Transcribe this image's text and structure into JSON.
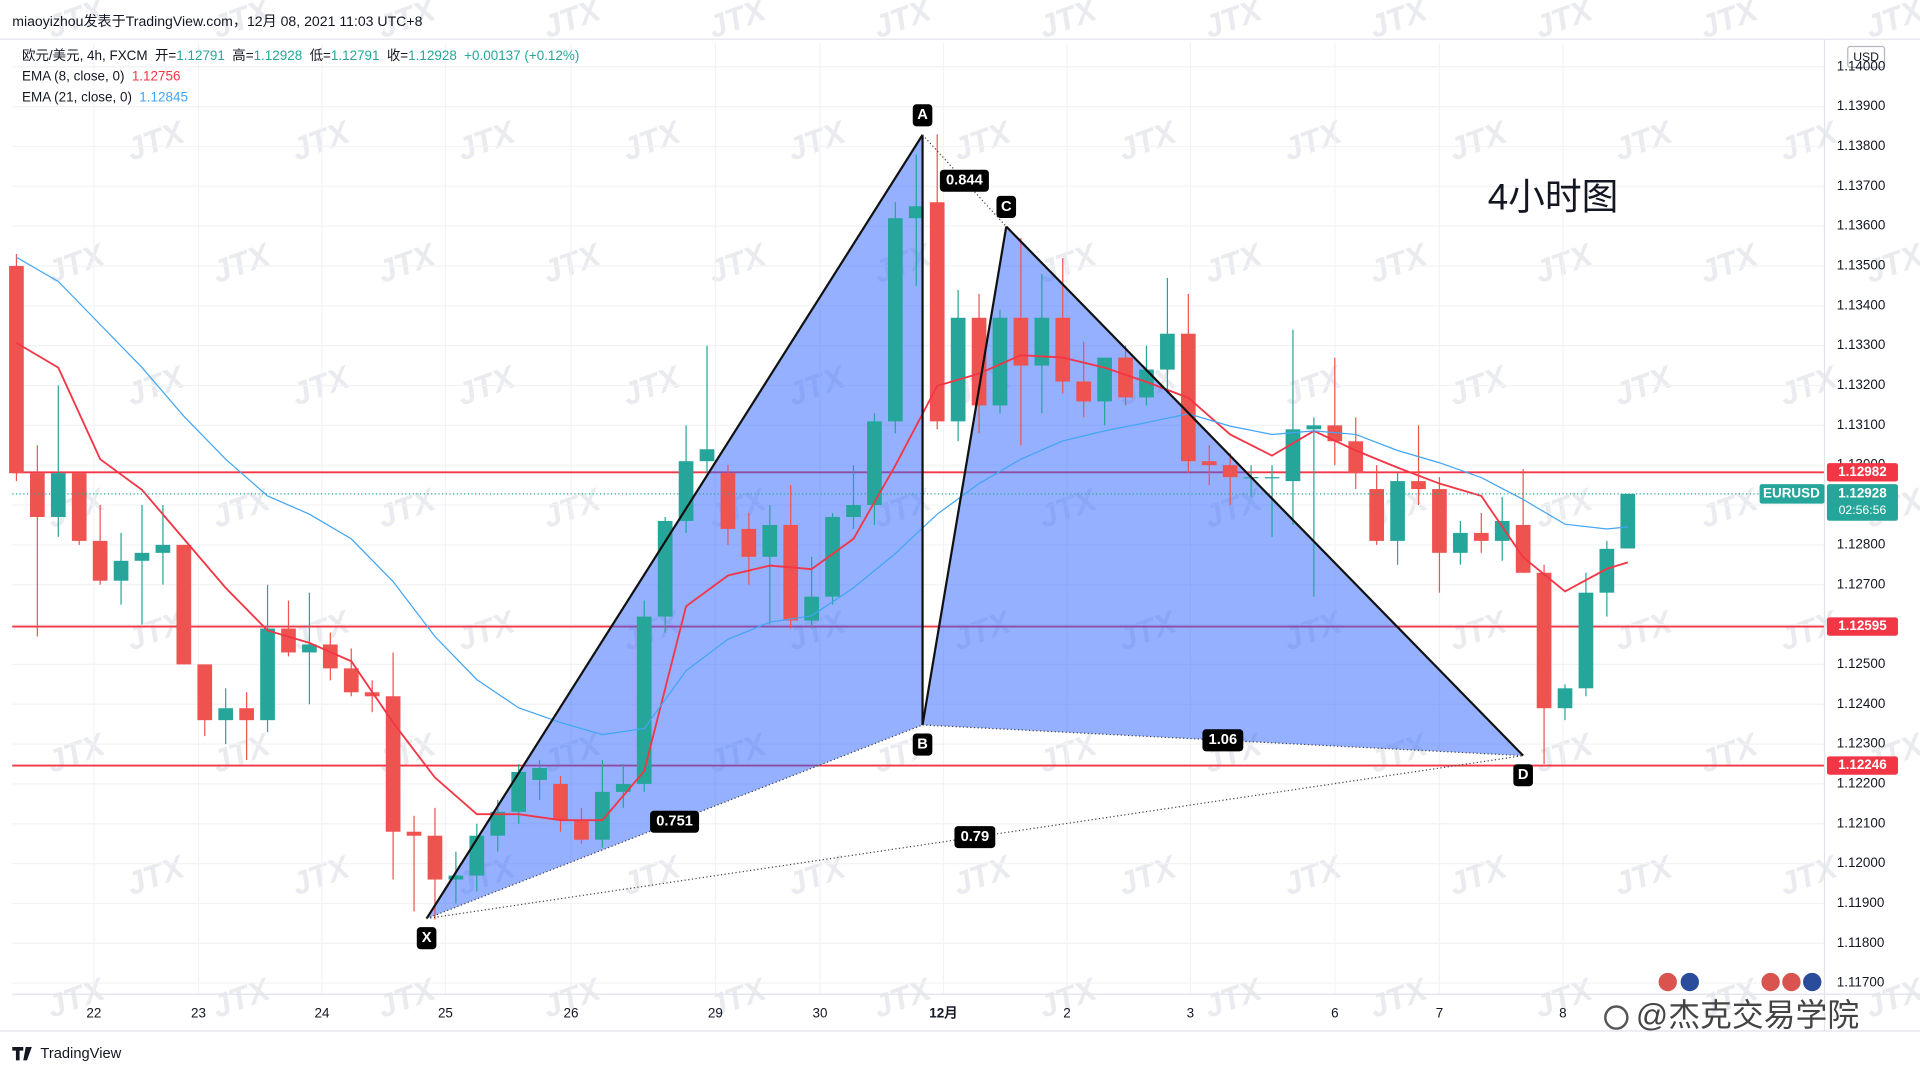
{
  "chart_data": {
    "type": "candlestick",
    "caption": "miaoyizhou发表于TradingView.com，12月 08, 2021 11:03 UTC+8",
    "legend": {
      "symbol": "欧元/美元, 4h, FXCM",
      "ohlc": [
        {
          "label": "开=",
          "value": 1.12791
        },
        {
          "label": "高=",
          "value": 1.12928
        },
        {
          "label": "低=",
          "value": 1.12791
        },
        {
          "label": "收=",
          "value": 1.12928
        }
      ],
      "change": "+0.00137 (+0.12%)",
      "value_color": "#26a69a"
    },
    "currency": "USD",
    "annotation": "4小时图",
    "credit": "@杰克交易学院",
    "brand": "TradingView",
    "watermark": "JTX",
    "up_color": "#26a69a",
    "down_color": "#ef5350",
    "grid": true,
    "xlim": [
      -0.2,
      86.4
    ],
    "ylim": [
      1.11672,
      1.1406
    ],
    "xticks": [
      {
        "value": 3.7,
        "label": "22"
      },
      {
        "value": 8.7,
        "label": "23"
      },
      {
        "value": 14.6,
        "label": "24"
      },
      {
        "value": 20.5,
        "label": "25"
      },
      {
        "value": 26.5,
        "label": "26"
      },
      {
        "value": 33.4,
        "label": "29"
      },
      {
        "value": 38.4,
        "label": "30"
      },
      {
        "value": 44.3,
        "label": "12月"
      },
      {
        "value": 50.2,
        "label": "2"
      },
      {
        "value": 56.1,
        "label": "3"
      },
      {
        "value": 63,
        "label": "6"
      },
      {
        "value": 68,
        "label": "7"
      },
      {
        "value": 73.9,
        "label": "8"
      }
    ],
    "yticks": [
      {
        "value": 1.117,
        "label": "1.11700"
      },
      {
        "value": 1.118,
        "label": "1.11800"
      },
      {
        "value": 1.119,
        "label": "1.11900"
      },
      {
        "value": 1.12,
        "label": "1.12000"
      },
      {
        "value": 1.121,
        "label": "1.12100"
      },
      {
        "value": 1.122,
        "label": "1.12200"
      },
      {
        "value": 1.123,
        "label": "1.12300"
      },
      {
        "value": 1.124,
        "label": "1.12400"
      },
      {
        "value": 1.125,
        "label": "1.12500"
      },
      {
        "value": 1.126,
        "label": "1.12600"
      },
      {
        "value": 1.127,
        "label": "1.12700"
      },
      {
        "value": 1.128,
        "label": "1.12800"
      },
      {
        "value": 1.129,
        "label": "1.12900"
      },
      {
        "value": 1.13,
        "label": "1.13000"
      },
      {
        "value": 1.131,
        "label": "1.13100"
      },
      {
        "value": 1.132,
        "label": "1.13200"
      },
      {
        "value": 1.133,
        "label": "1.13300"
      },
      {
        "value": 1.134,
        "label": "1.13400"
      },
      {
        "value": 1.135,
        "label": "1.13500"
      },
      {
        "value": 1.136,
        "label": "1.13600"
      },
      {
        "value": 1.137,
        "label": "1.13700"
      },
      {
        "value": 1.138,
        "label": "1.13800"
      },
      {
        "value": 1.139,
        "label": "1.13900"
      },
      {
        "value": 1.14,
        "label": "1.14000"
      }
    ],
    "open": [
      1.135,
      1.1298,
      1.1287,
      1.1298,
      1.1281,
      1.1271,
      1.1276,
      1.1278,
      1.128,
      1.125,
      1.1236,
      1.1239,
      1.1236,
      1.1259,
      1.1253,
      1.1255,
      1.1249,
      1.1243,
      1.1242,
      1.1208,
      1.1207,
      1.1196,
      1.1197,
      1.1207,
      1.1213,
      1.1221,
      1.122,
      1.1211,
      1.1206,
      1.1218,
      1.122,
      1.1262,
      1.1286,
      1.1301,
      1.1298,
      1.1284,
      1.1277,
      1.1285,
      1.1261,
      1.1267,
      1.1287,
      1.129,
      1.1311,
      1.1362,
      1.1366,
      1.1311,
      1.1337,
      1.1315,
      1.1337,
      1.1325,
      1.1337,
      1.1321,
      1.1316,
      1.1327,
      1.1317,
      1.1324,
      1.1333,
      1.1301,
      1.13,
      1.1297,
      1.1297,
      1.1296,
      1.1309,
      1.131,
      1.1306,
      1.1294,
      1.1281,
      1.1296,
      1.1294,
      1.1278,
      1.1283,
      1.1281,
      1.1285,
      1.1273,
      1.1239,
      1.1244,
      1.1268,
      1.12791
    ],
    "high": [
      1.1353,
      1.1305,
      1.132,
      1.1298,
      1.129,
      1.1283,
      1.129,
      1.129,
      1.128,
      1.125,
      1.1244,
      1.1243,
      1.127,
      1.1266,
      1.1268,
      1.1258,
      1.1254,
      1.1246,
      1.1253,
      1.1212,
      1.1214,
      1.1203,
      1.121,
      1.1216,
      1.1225,
      1.1226,
      1.1222,
      1.1214,
      1.1226,
      1.1225,
      1.1266,
      1.1287,
      1.131,
      1.133,
      1.13,
      1.1288,
      1.129,
      1.1295,
      1.1277,
      1.1288,
      1.13,
      1.1313,
      1.1366,
      1.1378,
      1.1383,
      1.1344,
      1.1343,
      1.1339,
      1.1357,
      1.1348,
      1.1352,
      1.1331,
      1.1326,
      1.133,
      1.133,
      1.1347,
      1.1343,
      1.1305,
      1.1303,
      1.13,
      1.13,
      1.1334,
      1.1312,
      1.1327,
      1.1312,
      1.13,
      1.1298,
      1.131,
      1.1297,
      1.1286,
      1.1288,
      1.1292,
      1.1299,
      1.1275,
      1.1245,
      1.1273,
      1.1281,
      1.12928
    ],
    "low": [
      1.1296,
      1.1257,
      1.1282,
      1.128,
      1.127,
      1.1265,
      1.126,
      1.127,
      1.125,
      1.1232,
      1.123,
      1.1226,
      1.1233,
      1.1252,
      1.124,
      1.1246,
      1.1242,
      1.1238,
      1.1196,
      1.1188,
      1.1186,
      1.119,
      1.1193,
      1.1203,
      1.121,
      1.1216,
      1.1208,
      1.1205,
      1.1204,
      1.1214,
      1.1218,
      1.1258,
      1.1283,
      1.1298,
      1.128,
      1.127,
      1.126,
      1.1259,
      1.1259,
      1.1265,
      1.1284,
      1.1285,
      1.1308,
      1.1345,
      1.1309,
      1.1306,
      1.1308,
      1.1313,
      1.1305,
      1.1313,
      1.1318,
      1.1312,
      1.131,
      1.1315,
      1.1315,
      1.1318,
      1.1298,
      1.1295,
      1.129,
      1.1292,
      1.1282,
      1.1285,
      1.1267,
      1.13,
      1.1294,
      1.128,
      1.1275,
      1.129,
      1.1268,
      1.1275,
      1.1278,
      1.1276,
      1.1273,
      1.1225,
      1.1236,
      1.1242,
      1.1262,
      1.12791
    ],
    "close": [
      1.1298,
      1.1287,
      1.1298,
      1.1281,
      1.1271,
      1.1276,
      1.1278,
      1.128,
      1.125,
      1.1236,
      1.1239,
      1.1236,
      1.1259,
      1.1253,
      1.1255,
      1.1249,
      1.1243,
      1.1242,
      1.1208,
      1.1207,
      1.1196,
      1.1197,
      1.1207,
      1.1213,
      1.1223,
      1.1224,
      1.1211,
      1.1206,
      1.1218,
      1.122,
      1.1262,
      1.1286,
      1.1301,
      1.1304,
      1.1284,
      1.1277,
      1.1285,
      1.1261,
      1.1267,
      1.1287,
      1.129,
      1.1311,
      1.1362,
      1.1365,
      1.1311,
      1.1337,
      1.1315,
      1.1337,
      1.1325,
      1.1337,
      1.1321,
      1.1316,
      1.1327,
      1.1317,
      1.1324,
      1.1333,
      1.1301,
      1.13,
      1.1297,
      1.1297,
      1.1297,
      1.1309,
      1.131,
      1.1306,
      1.1298,
      1.1281,
      1.1296,
      1.1294,
      1.1278,
      1.1283,
      1.1281,
      1.1286,
      1.1273,
      1.1239,
      1.1244,
      1.1268,
      1.1279,
      1.12928
    ],
    "lines": [
      {
        "name": "EMA (8, close, 0)",
        "color": "#f23645",
        "x": [
          0,
          2,
          4,
          6,
          8,
          10,
          12,
          14,
          16,
          18,
          20,
          22,
          24,
          26,
          28,
          30,
          32,
          34,
          36,
          38,
          40,
          42,
          44,
          46,
          48,
          50,
          52,
          54,
          56,
          58,
          60,
          62,
          64,
          66,
          68,
          70,
          72,
          74,
          76,
          77
        ],
        "values": [
          1.13307,
          1.13245,
          1.13015,
          1.12938,
          1.12815,
          1.12692,
          1.12585,
          1.12554,
          1.12508,
          1.12354,
          1.12216,
          1.12124,
          1.12124,
          1.12109,
          1.12109,
          1.12232,
          1.12646,
          1.12723,
          1.12748,
          1.12739,
          1.12815,
          1.12999,
          1.13199,
          1.1323,
          1.13276,
          1.1327,
          1.13245,
          1.13209,
          1.13169,
          1.13077,
          1.13024,
          1.13086,
          1.13037,
          1.12994,
          1.12954,
          1.12923,
          1.12769,
          1.12683,
          1.1274,
          1.12756
        ]
      },
      {
        "name": "EMA (21, close, 0)",
        "color": "#42a5f5",
        "x": [
          0,
          2,
          4,
          6,
          8,
          10,
          12,
          14,
          16,
          18,
          20,
          22,
          24,
          26,
          28,
          30,
          32,
          34,
          36,
          38,
          40,
          42,
          44,
          46,
          48,
          50,
          52,
          54,
          56,
          58,
          60,
          62,
          64,
          66,
          68,
          70,
          72,
          74,
          76,
          77
        ],
        "values": [
          1.13522,
          1.13461,
          1.13353,
          1.13245,
          1.13123,
          1.13015,
          1.12923,
          1.12877,
          1.12815,
          1.12708,
          1.1257,
          1.12462,
          1.12391,
          1.12354,
          1.12324,
          1.12339,
          1.12484,
          1.12563,
          1.12606,
          1.12622,
          1.12692,
          1.12778,
          1.12877,
          1.12954,
          1.13015,
          1.13061,
          1.13086,
          1.13107,
          1.13129,
          1.13098,
          1.13077,
          1.13086,
          1.13077,
          1.13037,
          1.13006,
          1.12969,
          1.12914,
          1.12852,
          1.1284,
          1.12845
        ]
      }
    ],
    "levels": [
      1.12982,
      1.12595,
      1.12246
    ],
    "level_color": "#f23645",
    "current": {
      "symbol": "EURUSD",
      "value": 1.12928,
      "countdown": "02:56:56"
    },
    "pattern": {
      "fill_color": "#2962ff",
      "points": [
        {
          "label": "X",
          "x": 19.6,
          "y": 1.11862
        },
        {
          "label": "A",
          "x": 43.3,
          "y": 1.13829
        },
        {
          "label": "B",
          "x": 43.3,
          "y": 1.12348
        },
        {
          "label": "C",
          "x": 47.3,
          "y": 1.13599
        },
        {
          "label": "D",
          "x": 72,
          "y": 1.12271
        }
      ],
      "ratios": [
        0.751,
        0.844,
        1.06,
        0.79
      ]
    }
  }
}
